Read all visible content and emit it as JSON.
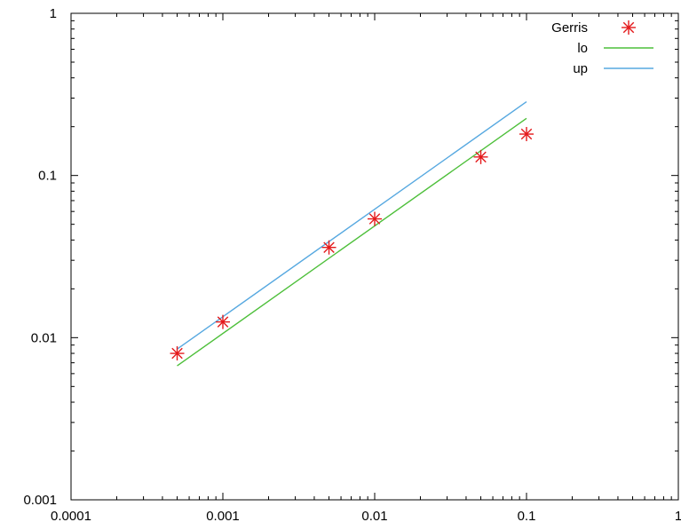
{
  "chart_data": {
    "type": "scatter",
    "xscale": "log",
    "yscale": "log",
    "xlim": [
      0.0001,
      1
    ],
    "ylim": [
      0.001,
      1
    ],
    "x_ticks": [
      0.0001,
      0.001,
      0.01,
      0.1,
      1
    ],
    "x_tick_labels": [
      "0.0001",
      "0.001",
      "0.01",
      "0.1",
      "1"
    ],
    "y_ticks": [
      0.001,
      0.01,
      0.1,
      1
    ],
    "y_tick_labels": [
      "0.001",
      "0.01",
      "0.1",
      "1"
    ],
    "grid": false,
    "legend_position": "top-right",
    "series": [
      {
        "name": "Gerris",
        "kind": "points",
        "marker": "asterisk",
        "color": "#e41a1c",
        "x": [
          0.0005,
          0.001,
          0.005,
          0.01,
          0.05,
          0.1
        ],
        "y": [
          0.008,
          0.0125,
          0.036,
          0.054,
          0.13,
          0.18
        ]
      },
      {
        "name": "lo",
        "kind": "line",
        "color": "#4dbf3a",
        "x": [
          0.0005,
          0.1
        ],
        "y": [
          0.0067,
          0.225
        ]
      },
      {
        "name": "up",
        "kind": "line",
        "color": "#56a8e0",
        "x": [
          0.0005,
          0.1
        ],
        "y": [
          0.0085,
          0.285
        ]
      }
    ]
  }
}
